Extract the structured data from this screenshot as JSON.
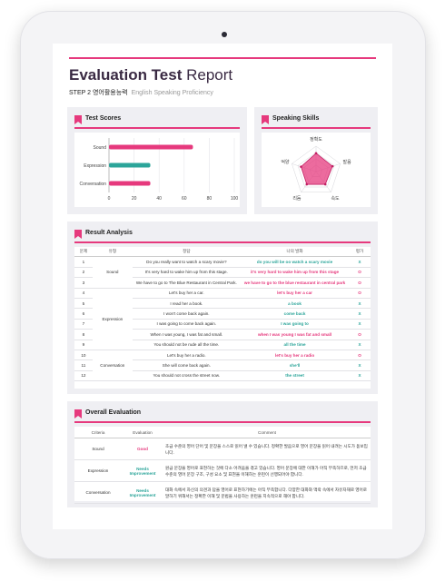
{
  "report": {
    "title_bold": "Evaluation Test",
    "title_rest": " Report",
    "step": "STEP 2 영어활용능력",
    "step_sub": "English Speaking Proficiency"
  },
  "colors": {
    "accent": "#e6397d",
    "teal": "#2ca59a",
    "panel": "#efeff3"
  },
  "test_scores": {
    "heading": "Test Scores",
    "chart_data": {
      "type": "bar",
      "orientation": "horizontal",
      "categories": [
        "Sound",
        "Expression",
        "Conversation"
      ],
      "values": [
        67,
        33,
        33
      ],
      "colors": [
        "#e6397d",
        "#2ca59a",
        "#e6397d"
      ],
      "xlim": [
        0,
        100
      ],
      "xticks": [
        "0",
        "20",
        "40",
        "60",
        "80",
        "100"
      ]
    }
  },
  "speaking_skills": {
    "heading": "Speaking Skills",
    "chart_data": {
      "type": "radar",
      "axes": [
        "정확도",
        "발음",
        "속도",
        "리듬",
        "억양"
      ],
      "values": [
        0.72,
        0.68,
        0.62,
        0.62,
        0.62
      ],
      "fill": "#e6397d"
    }
  },
  "result_analysis": {
    "heading": "Result Analysis",
    "columns": [
      "문제",
      "유형",
      "정답",
      "나의 발화",
      "평가"
    ],
    "rows": [
      {
        "no": "1",
        "type": "",
        "answer": "Do you really want to watch a scary movie?",
        "mine": "do you will be oo watch a scary movie",
        "mark": "X"
      },
      {
        "no": "2",
        "type": "Sound",
        "answer": "It's very hard to wake him up from this stage.",
        "mine": "it's very hard to wake him up from this stage",
        "mark": "O"
      },
      {
        "no": "3",
        "type": "",
        "answer": "We have to go to The Blue Restaurant in Central Park.",
        "mine": "we have to go to the blue restaurant in central park",
        "mark": "O"
      },
      {
        "no": "4",
        "type": "",
        "answer": "Let's buy her a car.",
        "mine": "let's buy her a car",
        "mark": "O"
      },
      {
        "no": "5",
        "type": "",
        "answer": "I read her a book.",
        "mine": "a book",
        "mark": "X"
      },
      {
        "no": "6",
        "type": "Expression",
        "answer": "I won't come back again.",
        "mine": "come back",
        "mark": "X"
      },
      {
        "no": "7",
        "type": "",
        "answer": "I was going to come back again.",
        "mine": "I was going to",
        "mark": "X"
      },
      {
        "no": "8",
        "type": "",
        "answer": "When I was young, I was fat and small.",
        "mine": "when I was young I was fat and small",
        "mark": "O"
      },
      {
        "no": "9",
        "type": "",
        "answer": "You should not be rude all the time.",
        "mine": "all the time",
        "mark": "X"
      },
      {
        "no": "10",
        "type": "",
        "answer": "Let's buy her a radio.",
        "mine": "let's buy her a radio",
        "mark": "O"
      },
      {
        "no": "11",
        "type": "Conversation",
        "answer": "She will come back again.",
        "mine": "she'll",
        "mark": "X"
      },
      {
        "no": "12",
        "type": "",
        "answer": "You should not cross the street now.",
        "mine": "the street",
        "mark": "X"
      }
    ]
  },
  "overall": {
    "heading": "Overall Evaluation",
    "columns": [
      "Criteria",
      "Evaluation",
      "Comment"
    ],
    "rows": [
      {
        "criteria": "Sound",
        "evaluation": "Good",
        "comment": "초급 수준의 영어 단어 및 문장을 스스로 읽어 낼 수 있습니다. 정확한 발음으로 영어 문장을 읽어 내려는 시도가 돋보입니다."
      },
      {
        "criteria": "Expression",
        "evaluation": "Needs Improvement",
        "comment": "원급 문장을 영어로 표현하는 것에 다소 어려움을 겪고 있습니다. 영어 문장에 대한 이해가 아직 부족하므로, 먼저 초급 수준의 영어 문장 구조, 구성 요소 및 표현을 이해하는 훈련이 선행되어야 합니다."
      },
      {
        "criteria": "Conversation",
        "evaluation": "Needs Improvement",
        "comment": "대화 속에서 자신의 의견과 답을 영어로 표현하기에는 아직 부족합니다. 다양한 대화와 맥락 속에서 자유자재로 영어로 말하기 위해서는 정확한 이해 및 문법을 사용하는 훈련을 지속적으로 해야 합니다."
      }
    ]
  }
}
